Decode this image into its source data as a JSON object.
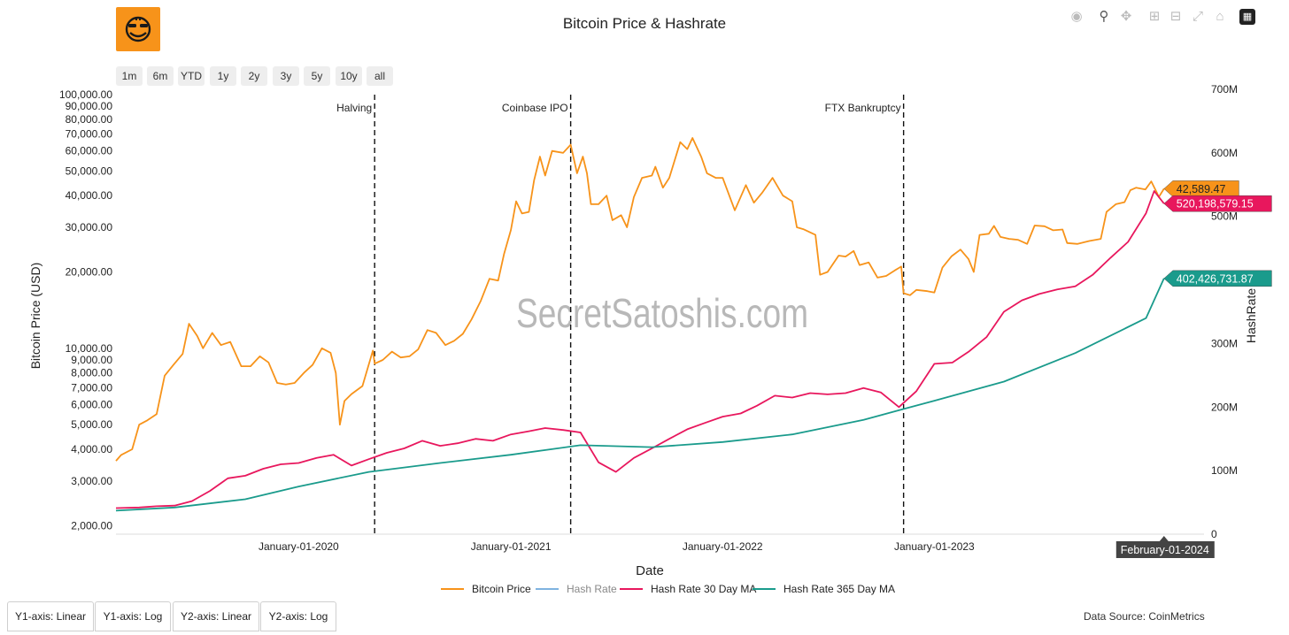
{
  "title": "Bitcoin Price & Hashrate",
  "range_buttons": [
    "1m",
    "6m",
    "YTD",
    "1y",
    "2y",
    "3y",
    "5y",
    "10y",
    "all"
  ],
  "modebar_icons": [
    "camera-icon",
    "zoom-icon",
    "pan-icon",
    "zoom-in-icon",
    "zoom-out-icon",
    "autoscale-icon",
    "reset-axes-icon",
    "plotly-logo-icon"
  ],
  "legend": [
    {
      "name": "Bitcoin Price",
      "color": "#f7931a"
    },
    {
      "name": "Hash Rate",
      "color": "#7fb3e0"
    },
    {
      "name": "Hash Rate 30 Day MA",
      "color": "#e8175d"
    },
    {
      "name": "Hash Rate 365 Day MA",
      "color": "#1a9b8c"
    }
  ],
  "axis_tabs": [
    "Y1-axis: Linear",
    "Y1-axis: Log",
    "Y2-axis: Linear",
    "Y2-axis: Log"
  ],
  "data_source": "Data Source: CoinMetrics",
  "watermark": "SecretSatoshis.com",
  "chart_data": {
    "type": "line",
    "title": "Bitcoin Price & Hashrate",
    "xlabel": "Date",
    "ylabel": "Bitcoin Price (USD)",
    "y2label": "HashRate",
    "x_range": [
      "2019-02-20",
      "2024-04-10"
    ],
    "y_scale": "log",
    "y_range": [
      1850,
      105000
    ],
    "y2_range": [
      0,
      700000000
    ],
    "x_ticks": [
      "2020-01-01",
      "2021-01-01",
      "2022-01-01",
      "2023-01-01",
      "2024-01-01"
    ],
    "x_tick_labels": [
      "January-01-2020",
      "January-01-2021",
      "January-01-2022",
      "January-01-2023",
      "J"
    ],
    "y_ticks": [
      2000,
      3000,
      4000,
      5000,
      6000,
      7000,
      8000,
      9000,
      10000,
      20000,
      30000,
      40000,
      50000,
      60000,
      70000,
      80000,
      90000,
      100000
    ],
    "y_tick_labels": [
      "2,000.00",
      "3,000.00",
      "4,000.00",
      "5,000.00",
      "6,000.00",
      "7,000.00",
      "8,000.00",
      "9,000.00",
      "10,000.00",
      "20,000.00",
      "30,000.00",
      "40,000.00",
      "50,000.00",
      "60,000.00",
      "70,000.00",
      "80,000.00",
      "90,000.00",
      "100,000.00"
    ],
    "y2_ticks": [
      0,
      100000000,
      200000000,
      300000000,
      400000000,
      500000000,
      600000000,
      700000000
    ],
    "y2_tick_labels": [
      "0",
      "100M",
      "200M",
      "300M",
      "400M",
      "500M",
      "600M",
      "700M"
    ],
    "grid": false,
    "legend_position": "bottom-center",
    "series": [
      {
        "name": "Bitcoin Price",
        "axis": "y",
        "color": "#f7931a",
        "x": [
          "2019-02-20",
          "2019-03-01",
          "2019-03-20",
          "2019-04-01",
          "2019-04-15",
          "2019-05-01",
          "2019-05-15",
          "2019-05-30",
          "2019-06-15",
          "2019-06-26",
          "2019-07-10",
          "2019-07-20",
          "2019-08-05",
          "2019-08-20",
          "2019-09-05",
          "2019-09-24",
          "2019-10-10",
          "2019-10-26",
          "2019-11-10",
          "2019-11-25",
          "2019-12-10",
          "2019-12-25",
          "2020-01-10",
          "2020-01-25",
          "2020-02-10",
          "2020-02-25",
          "2020-03-05",
          "2020-03-12",
          "2020-03-20",
          "2020-04-01",
          "2020-04-20",
          "2020-05-08",
          "2020-05-11",
          "2020-05-25",
          "2020-06-10",
          "2020-06-25",
          "2020-07-10",
          "2020-07-25",
          "2020-08-10",
          "2020-08-25",
          "2020-09-10",
          "2020-09-25",
          "2020-10-10",
          "2020-10-25",
          "2020-11-10",
          "2020-11-25",
          "2020-12-10",
          "2020-12-20",
          "2021-01-01",
          "2021-01-10",
          "2021-01-20",
          "2021-02-01",
          "2021-02-10",
          "2021-02-20",
          "2021-03-01",
          "2021-03-13",
          "2021-04-01",
          "2021-04-14",
          "2021-04-25",
          "2021-05-05",
          "2021-05-12",
          "2021-05-19",
          "2021-06-01",
          "2021-06-15",
          "2021-06-25",
          "2021-07-10",
          "2021-07-20",
          "2021-08-01",
          "2021-08-15",
          "2021-09-01",
          "2021-09-07",
          "2021-09-20",
          "2021-10-01",
          "2021-10-20",
          "2021-11-01",
          "2021-11-10",
          "2021-11-25",
          "2021-12-05",
          "2021-12-20",
          "2022-01-01",
          "2022-01-22",
          "2022-02-10",
          "2022-02-24",
          "2022-03-10",
          "2022-03-28",
          "2022-04-15",
          "2022-05-01",
          "2022-05-09",
          "2022-05-20",
          "2022-06-10",
          "2022-06-18",
          "2022-07-01",
          "2022-07-20",
          "2022-08-01",
          "2022-08-15",
          "2022-08-25",
          "2022-09-10",
          "2022-09-25",
          "2022-10-10",
          "2022-10-25",
          "2022-11-05",
          "2022-11-09",
          "2022-11-20",
          "2022-12-01",
          "2022-12-20",
          "2023-01-01",
          "2023-01-15",
          "2023-01-31",
          "2023-02-15",
          "2023-03-01",
          "2023-03-10",
          "2023-03-20",
          "2023-04-05",
          "2023-04-14",
          "2023-04-25",
          "2023-05-10",
          "2023-05-25",
          "2023-06-10",
          "2023-06-23",
          "2023-07-10",
          "2023-07-25",
          "2023-08-10",
          "2023-08-18",
          "2023-09-05",
          "2023-09-25",
          "2023-10-15",
          "2023-10-25",
          "2023-11-10",
          "2023-11-25",
          "2023-12-05",
          "2023-12-15",
          "2023-12-31",
          "2024-01-10",
          "2024-01-20",
          "2024-01-23",
          "2024-02-01"
        ],
        "y": [
          3600,
          3800,
          4000,
          5000,
          5200,
          5500,
          7800,
          8600,
          9500,
          12500,
          11200,
          10000,
          11500,
          10300,
          10600,
          8500,
          8500,
          9300,
          8800,
          7300,
          7200,
          7300,
          8000,
          8600,
          10000,
          9600,
          8000,
          5000,
          6200,
          6600,
          7100,
          9800,
          8700,
          9000,
          9700,
          9200,
          9300,
          9900,
          11800,
          11500,
          10300,
          10700,
          11400,
          13000,
          15400,
          18800,
          18500,
          23500,
          29300,
          38000,
          34000,
          34500,
          46000,
          57000,
          48000,
          60000,
          59000,
          63500,
          49000,
          57000,
          49000,
          37000,
          37000,
          40000,
          32000,
          33500,
          30000,
          39500,
          47000,
          48000,
          52000,
          43000,
          47000,
          65000,
          61000,
          67500,
          57000,
          49000,
          47000,
          47000,
          35000,
          44000,
          37500,
          41000,
          47000,
          40000,
          38000,
          30000,
          29500,
          28000,
          19500,
          20000,
          23200,
          23000,
          24200,
          21300,
          21800,
          19000,
          19300,
          20300,
          21000,
          16500,
          16200,
          17000,
          16800,
          16600,
          20800,
          23100,
          24500,
          22500,
          20000,
          28000,
          28300,
          30400,
          27500,
          27000,
          26800,
          25800,
          30500,
          30300,
          29200,
          29400,
          26000,
          25800,
          26500,
          27000,
          34500,
          37000,
          37700,
          42000,
          43000,
          42300,
          45500,
          41000,
          39500,
          42589
        ]
      },
      {
        "name": "Hash Rate 30 Day MA",
        "axis": "y2",
        "color": "#e8175d",
        "x": [
          "2019-02-20",
          "2019-04-01",
          "2019-05-01",
          "2019-06-01",
          "2019-07-01",
          "2019-08-01",
          "2019-09-01",
          "2019-10-01",
          "2019-11-01",
          "2019-12-01",
          "2020-01-01",
          "2020-02-01",
          "2020-03-01",
          "2020-04-01",
          "2020-05-01",
          "2020-06-01",
          "2020-07-01",
          "2020-08-01",
          "2020-09-01",
          "2020-10-01",
          "2020-11-01",
          "2020-12-01",
          "2021-01-01",
          "2021-02-01",
          "2021-03-01",
          "2021-04-01",
          "2021-05-01",
          "2021-06-01",
          "2021-07-01",
          "2021-08-01",
          "2021-09-01",
          "2021-10-01",
          "2021-11-01",
          "2021-12-01",
          "2022-01-01",
          "2022-02-01",
          "2022-03-01",
          "2022-04-01",
          "2022-05-01",
          "2022-06-01",
          "2022-07-01",
          "2022-08-01",
          "2022-09-01",
          "2022-10-01",
          "2022-11-01",
          "2022-12-01",
          "2023-01-01",
          "2023-02-01",
          "2023-03-01",
          "2023-04-01",
          "2023-05-01",
          "2023-06-01",
          "2023-07-01",
          "2023-08-01",
          "2023-09-01",
          "2023-10-01",
          "2023-11-01",
          "2023-12-01",
          "2024-01-01",
          "2024-01-15",
          "2024-02-01"
        ],
        "y": [
          41000000,
          42000000,
          44000000,
          45000000,
          52000000,
          68000000,
          88000000,
          92000000,
          103000000,
          110000000,
          112000000,
          120000000,
          125000000,
          108000000,
          118000000,
          128000000,
          135000000,
          147000000,
          139000000,
          143000000,
          150000000,
          147000000,
          157000000,
          162000000,
          167000000,
          164000000,
          160000000,
          113000000,
          98000000,
          120000000,
          135000000,
          150000000,
          165000000,
          175000000,
          185000000,
          190000000,
          202000000,
          218000000,
          215000000,
          222000000,
          220000000,
          222000000,
          230000000,
          223000000,
          200000000,
          225000000,
          268000000,
          270000000,
          287000000,
          310000000,
          350000000,
          368000000,
          378000000,
          385000000,
          390000000,
          408000000,
          435000000,
          460000000,
          505000000,
          540000000,
          520198579.15
        ]
      },
      {
        "name": "Hash Rate 365 Day MA",
        "axis": "y2",
        "color": "#1a9b8c",
        "x": [
          "2019-02-20",
          "2019-06-01",
          "2019-10-01",
          "2020-01-01",
          "2020-05-01",
          "2020-09-01",
          "2021-01-01",
          "2021-05-01",
          "2021-09-01",
          "2022-01-01",
          "2022-05-01",
          "2022-09-01",
          "2023-01-01",
          "2023-05-01",
          "2023-09-01",
          "2024-01-01",
          "2024-02-01"
        ],
        "y": [
          37000000,
          42000000,
          55000000,
          75000000,
          98000000,
          112000000,
          125000000,
          140000000,
          137000000,
          145000000,
          157000000,
          180000000,
          210000000,
          240000000,
          285000000,
          340000000,
          402426731.87
        ]
      },
      {
        "name": "Hash Rate",
        "axis": "y2",
        "color": "#7fb3e0",
        "x": [],
        "y": []
      }
    ],
    "annotations": [
      {
        "date": "2020-05-11",
        "label": "Halving"
      },
      {
        "date": "2021-04-14",
        "label": "Coinbase IPO"
      },
      {
        "date": "2022-11-09",
        "label": "FTX Bankruptcy"
      }
    ],
    "end_labels": [
      {
        "text": "42,589.47",
        "color": "#f7931a",
        "text_color": "#222222"
      },
      {
        "text": "520,198,579.15",
        "color": "#e8175d",
        "text_color": "#ffffff"
      },
      {
        "text": "402,426,731.87",
        "color": "#1a9b8c",
        "text_color": "#ffffff"
      }
    ],
    "hover_label": {
      "date": "2024-02-01",
      "text": "February-01-2024"
    }
  }
}
